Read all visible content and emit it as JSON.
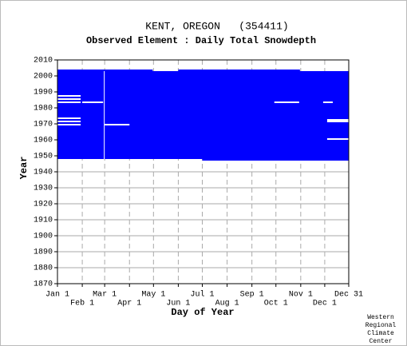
{
  "chart_data": {
    "type": "coverage",
    "title": "KENT, OREGON   (354411)",
    "subtitle": "Observed Element : Daily Total Snowdepth",
    "x_label": "Day of Year",
    "y_label": "Year",
    "credit": [
      "Western",
      "Regional",
      "Climate",
      "Center"
    ],
    "color": "#0000ff",
    "gap_color": "#ffffff",
    "grid": true,
    "xlim": [
      1,
      365
    ],
    "ylim": [
      1870,
      2010
    ],
    "xticks": [
      {
        "value": 1,
        "label": "Jan 1"
      },
      {
        "value": 32,
        "label": "Feb 1"
      },
      {
        "value": 60,
        "label": "Mar 1"
      },
      {
        "value": 91,
        "label": "Apr 1"
      },
      {
        "value": 121,
        "label": "May 1"
      },
      {
        "value": 152,
        "label": "Jun 1"
      },
      {
        "value": 182,
        "label": "Jul 1"
      },
      {
        "value": 213,
        "label": "Aug 1"
      },
      {
        "value": 244,
        "label": "Sep 1"
      },
      {
        "value": 274,
        "label": "Oct 1"
      },
      {
        "value": 305,
        "label": "Nov 1"
      },
      {
        "value": 335,
        "label": "Dec 1"
      },
      {
        "value": 365,
        "label": "Dec 31"
      }
    ],
    "yticks": [
      1870,
      1880,
      1890,
      1900,
      1910,
      1920,
      1930,
      1940,
      1950,
      1960,
      1970,
      1980,
      1990,
      2000,
      2010
    ],
    "blocks": [
      {
        "x0": 1,
        "x1": 365,
        "y0": 1948,
        "y1": 2003
      },
      {
        "x0": 1,
        "x1": 120,
        "y0": 2003,
        "y1": 2004
      },
      {
        "x0": 152,
        "x1": 304,
        "y0": 2003,
        "y1": 2004
      },
      {
        "x0": 182,
        "x1": 365,
        "y0": 1947,
        "y1": 1948
      }
    ],
    "gaps": [
      {
        "x0": 1,
        "x1": 30,
        "y0": 1969,
        "y1": 1970
      },
      {
        "x0": 1,
        "x1": 30,
        "y0": 1971,
        "y1": 1972
      },
      {
        "x0": 1,
        "x1": 30,
        "y0": 1973,
        "y1": 1974
      },
      {
        "x0": 1,
        "x1": 30,
        "y0": 1983,
        "y1": 1984
      },
      {
        "x0": 1,
        "x1": 30,
        "y0": 1985,
        "y1": 1986
      },
      {
        "x0": 1,
        "x1": 30,
        "y0": 1987,
        "y1": 1988
      },
      {
        "x0": 32,
        "x1": 58,
        "y0": 1983,
        "y1": 1984
      },
      {
        "x0": 59,
        "x1": 60,
        "y0": 1948,
        "y1": 2003
      },
      {
        "x0": 60,
        "x1": 91,
        "y0": 1969,
        "y1": 1970
      },
      {
        "x0": 272,
        "x1": 303,
        "y0": 1983,
        "y1": 1984
      },
      {
        "x0": 333,
        "x1": 345,
        "y0": 1983,
        "y1": 1984
      },
      {
        "x0": 338,
        "x1": 365,
        "y0": 1971,
        "y1": 1973
      },
      {
        "x0": 338,
        "x1": 365,
        "y0": 1960,
        "y1": 1961
      }
    ]
  }
}
